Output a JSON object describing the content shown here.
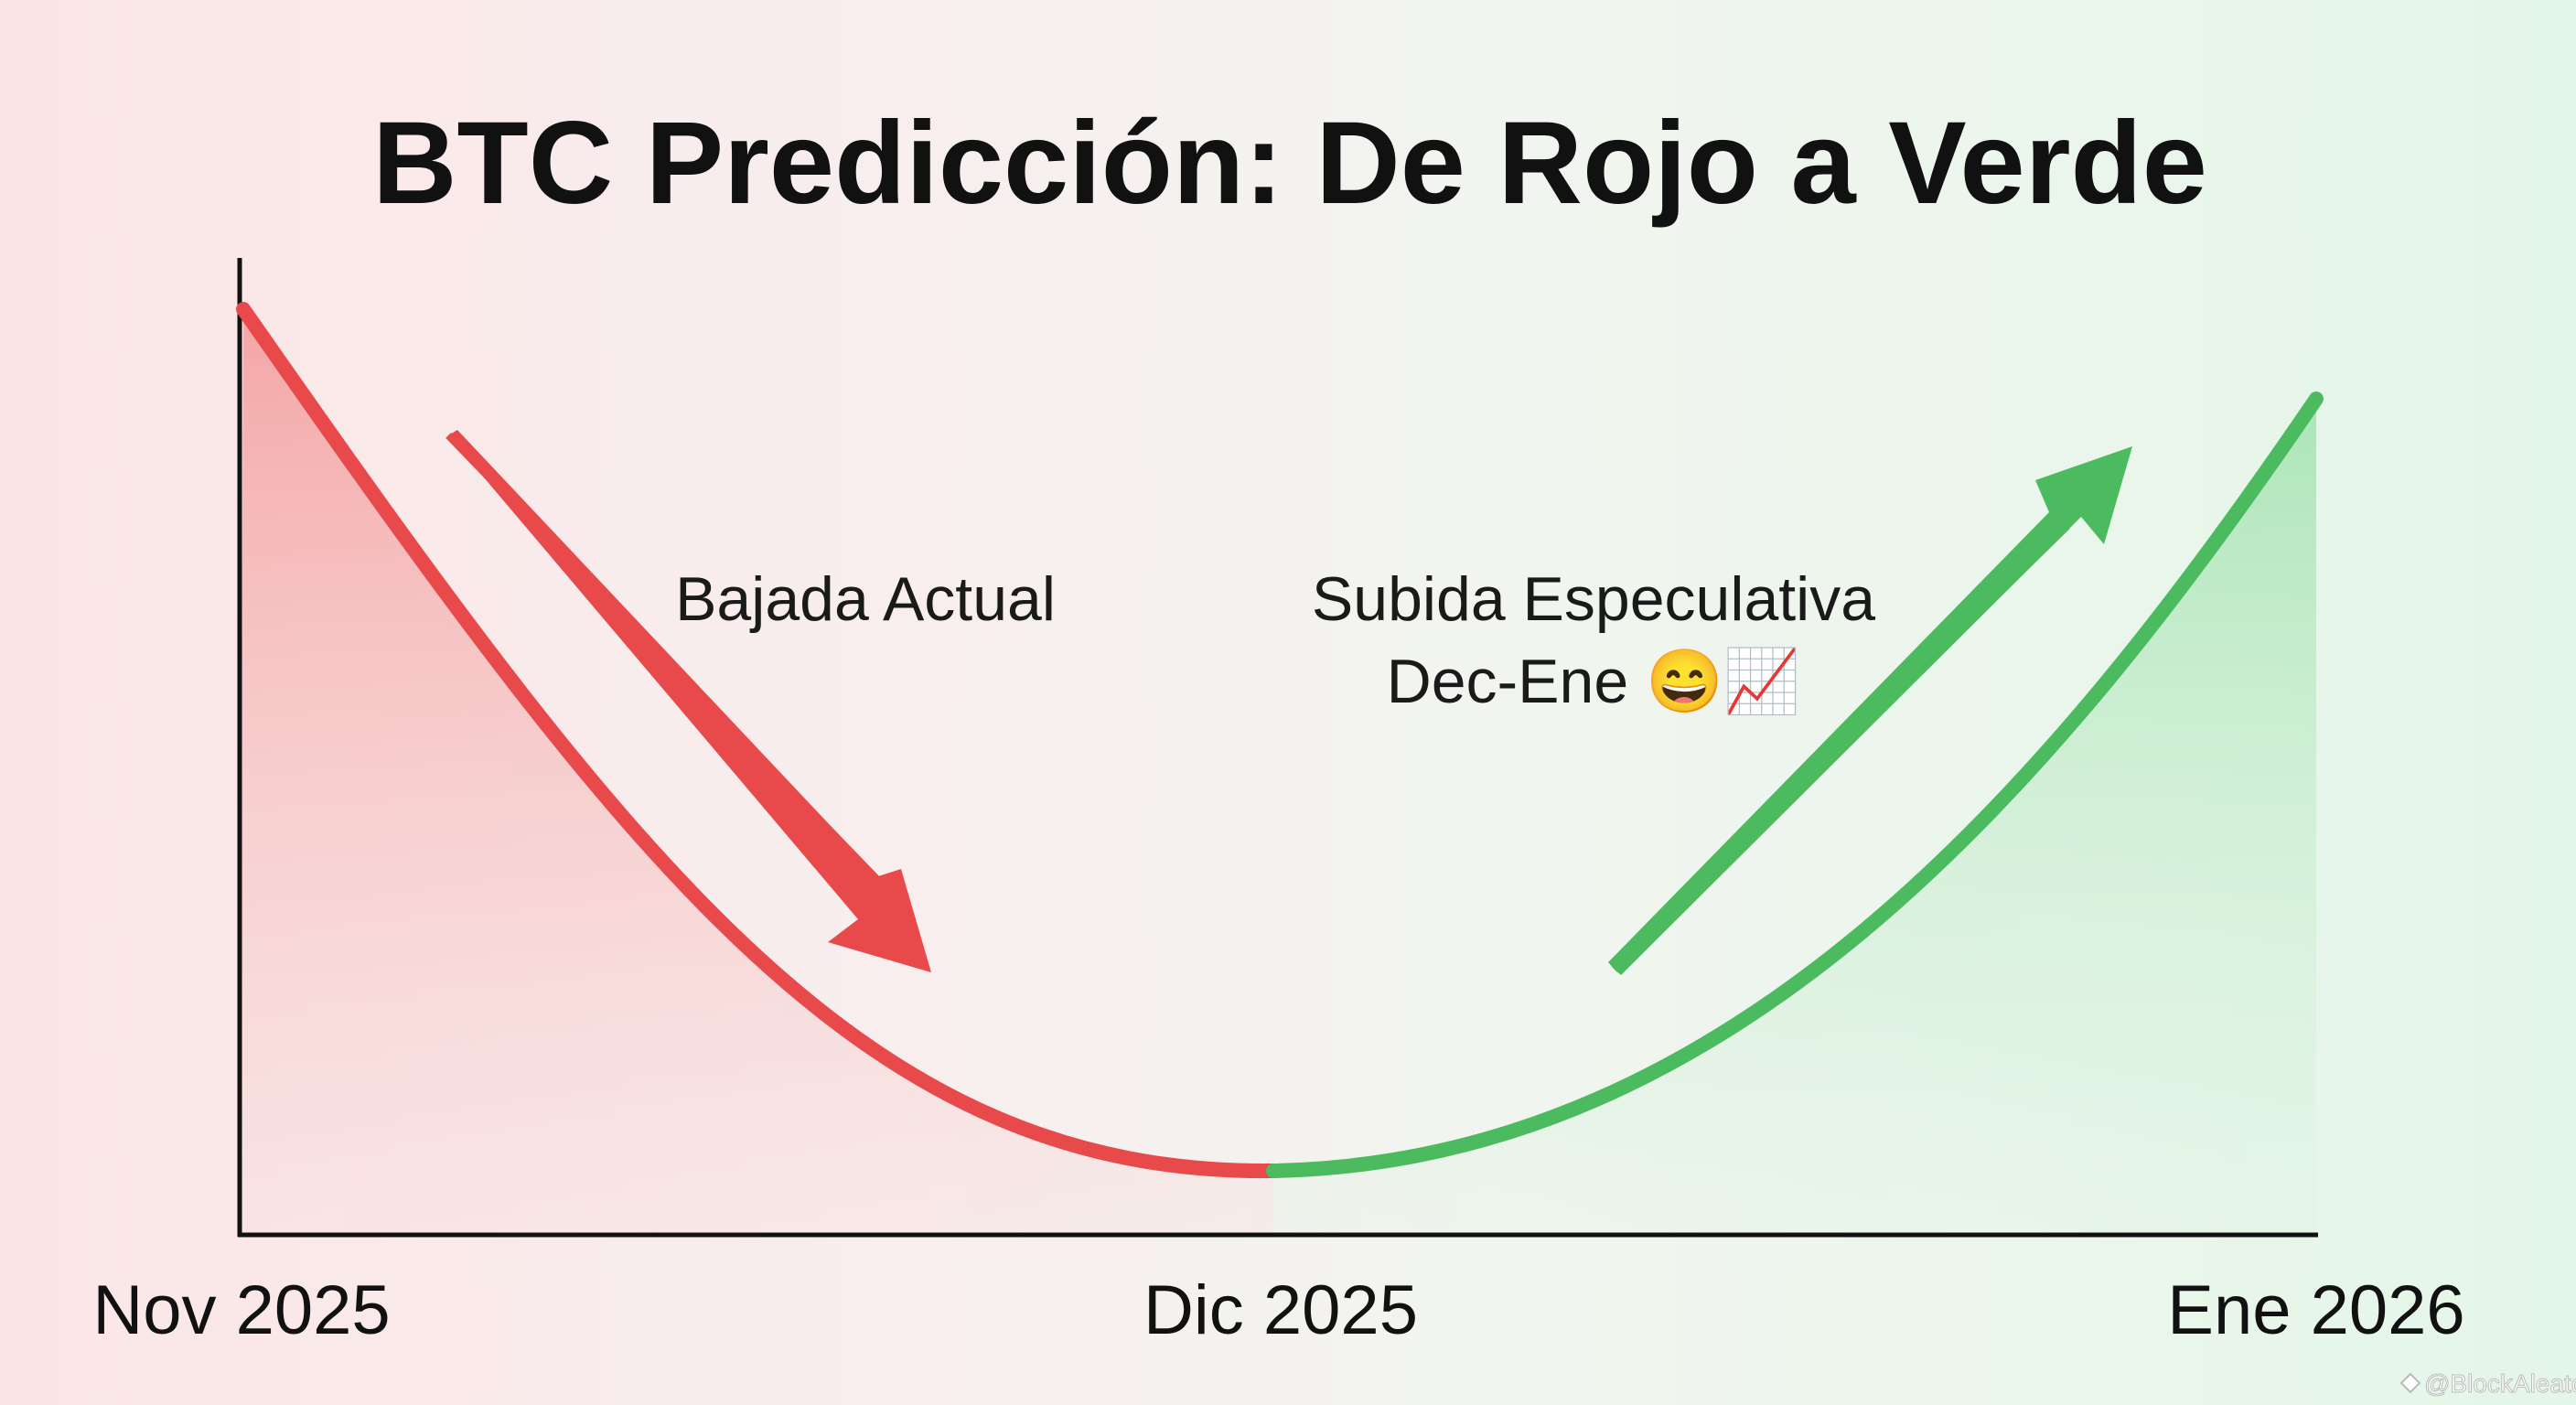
{
  "chart_data": {
    "type": "line",
    "title": "BTC Predicción: De Rojo a Verde",
    "xlabel": "",
    "ylabel": "",
    "x_ticks": [
      "Nov 2025",
      "Dic 2025",
      "Ene 2026"
    ],
    "grid": false,
    "series": [
      {
        "phase": "down",
        "color": "#e8494b",
        "x": [
          "Nov 2025",
          "Dic 2025"
        ],
        "trend": "decreasing"
      },
      {
        "phase": "up",
        "color": "#4cbb5f",
        "x": [
          "Dic 2025",
          "Ene 2026"
        ],
        "trend": "increasing"
      }
    ],
    "annotations": [
      {
        "text": "Bajada Actual",
        "arrow": "down",
        "color": "#e8494b"
      },
      {
        "text": "Subida Especulativa",
        "line2": "Dec-Ene 😄📈",
        "arrow": "up",
        "color": "#4cbb5f"
      }
    ]
  },
  "watermark": "@BlockAleatorio"
}
